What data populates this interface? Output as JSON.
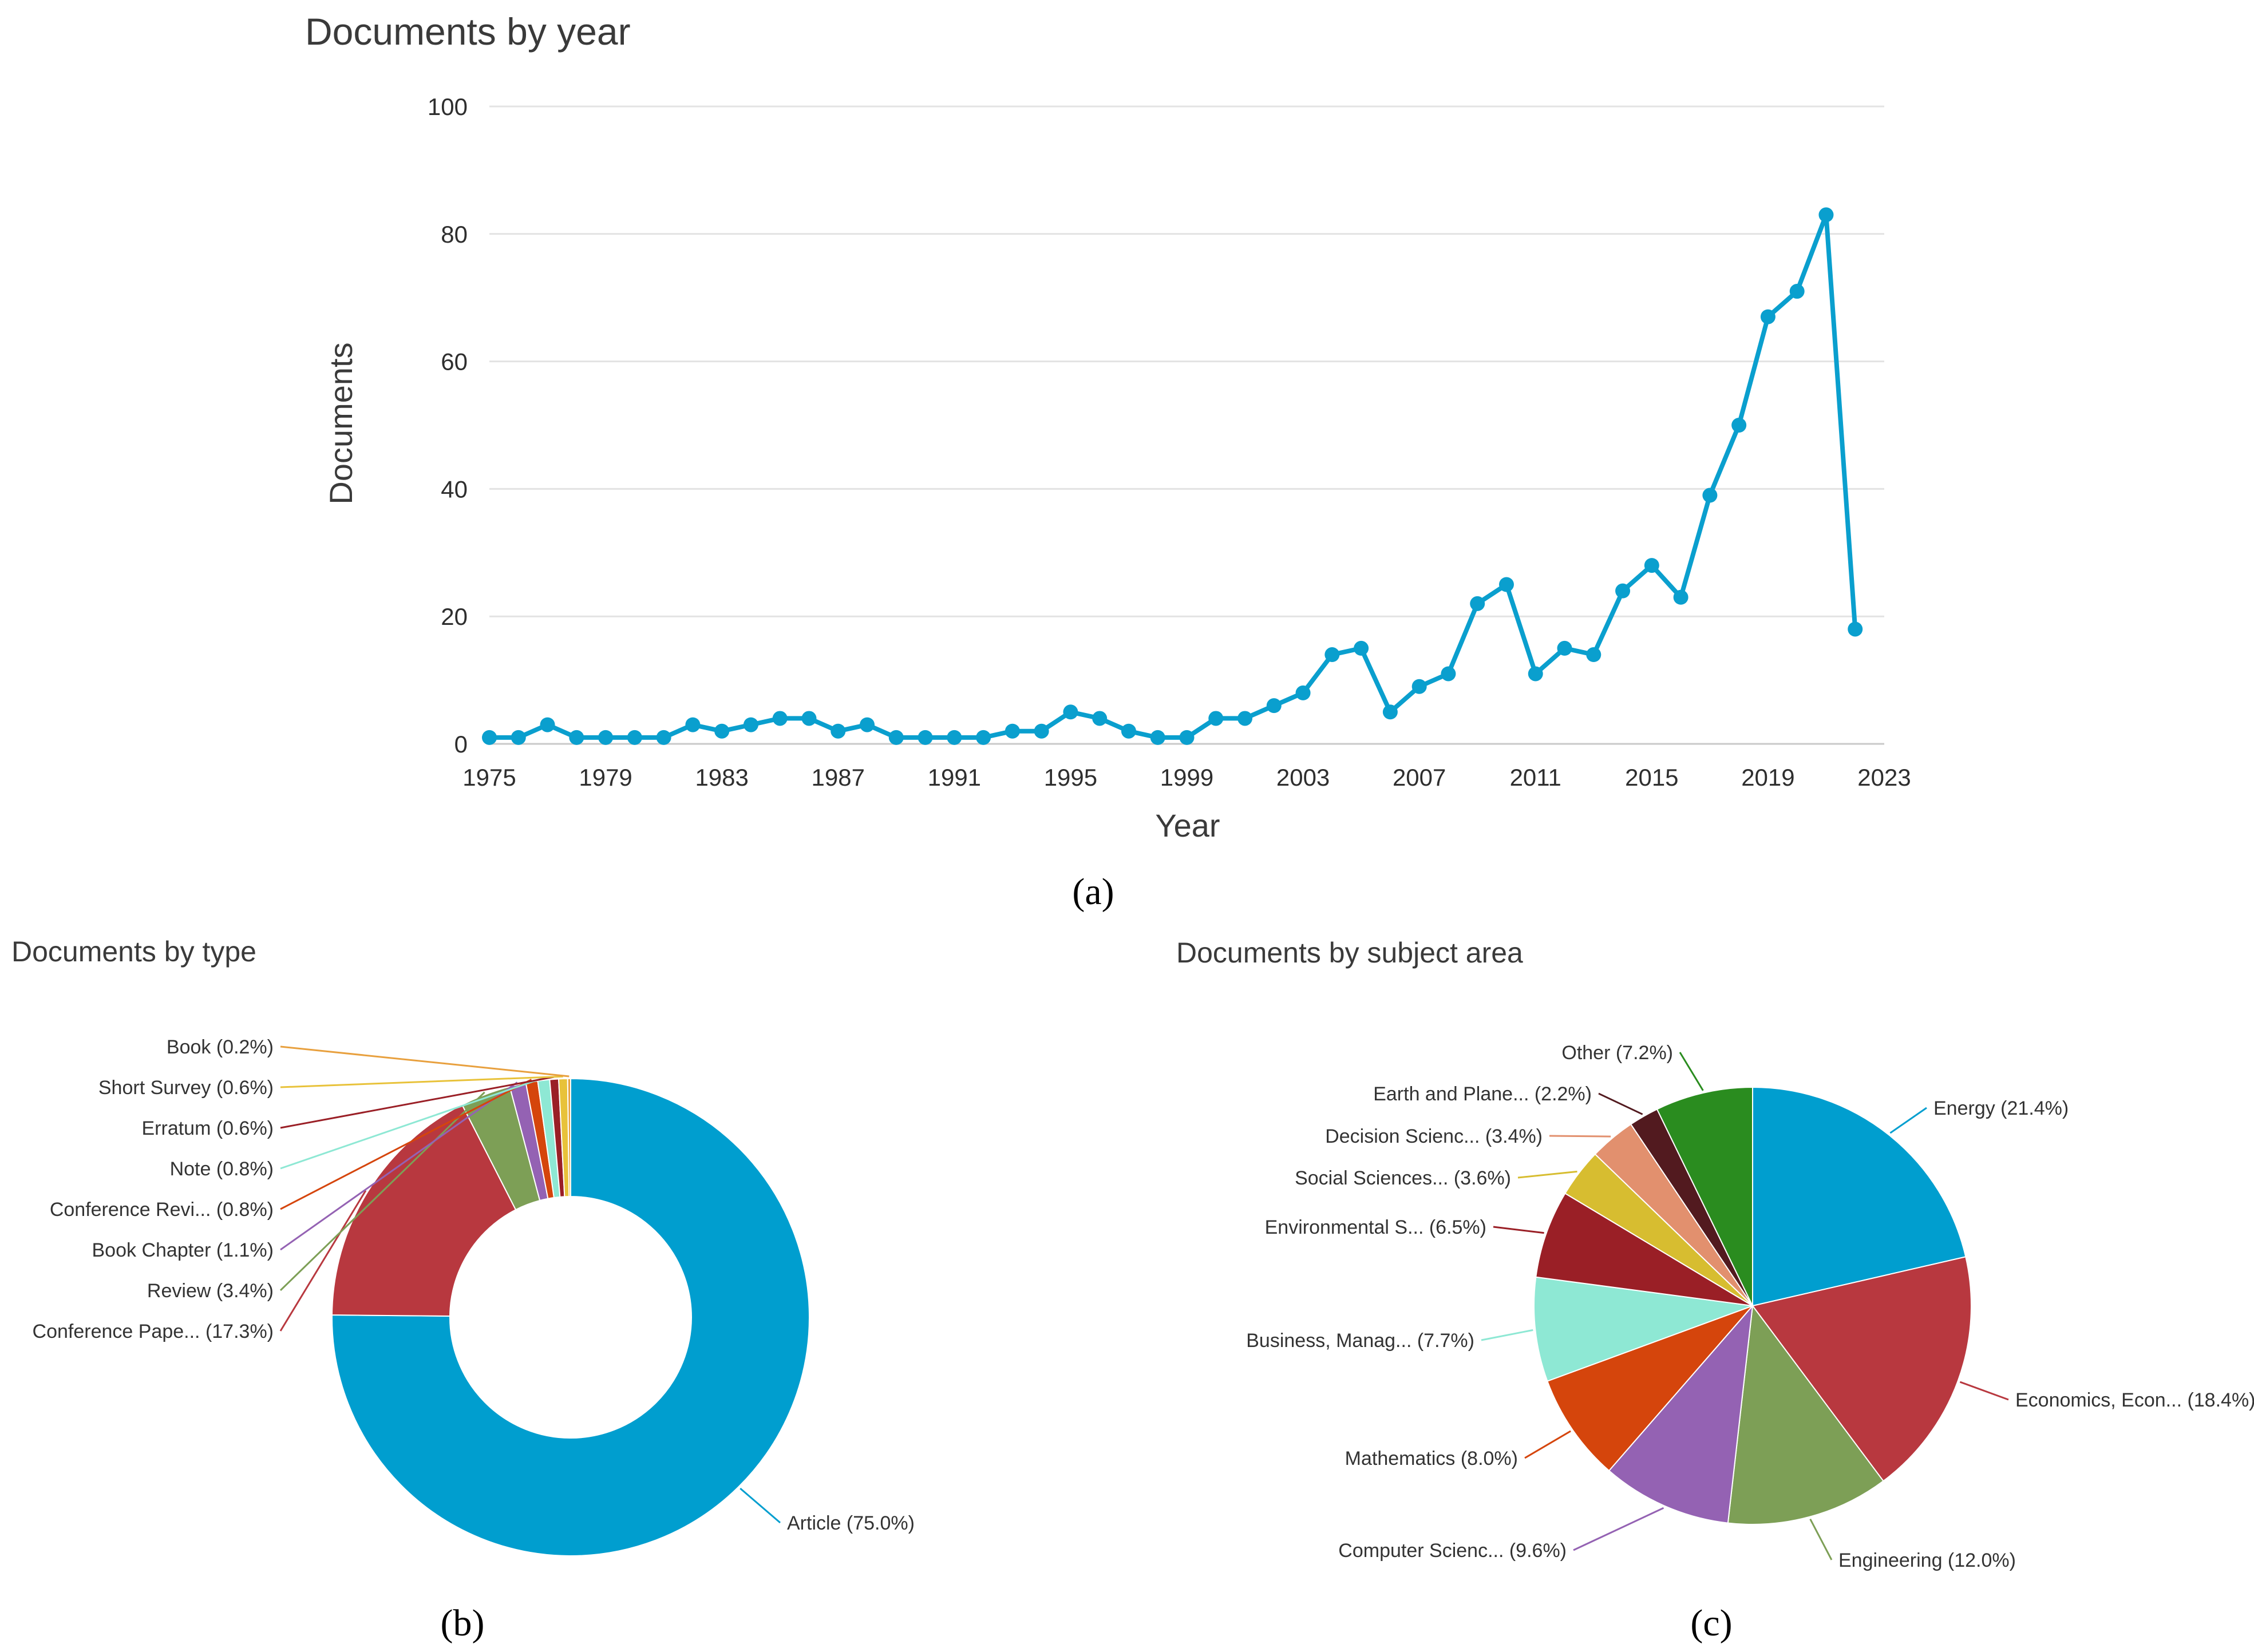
{
  "colors": {
    "line": "#0a9fce",
    "palette": [
      "#009ecf",
      "#b8383f",
      "#7d9f56",
      "#9462b3",
      "#d5450c",
      "#8ee8d4",
      "#9a1f26",
      "#d7bd30",
      "#e2906e",
      "#521a1f",
      "#2a8c1f",
      "#e8a03e"
    ]
  },
  "chart_data": [
    {
      "type": "line",
      "title": "Documents by year",
      "xlabel": "Year",
      "ylabel": "Documents",
      "ylim": [
        0,
        100
      ],
      "yticks": [
        "0",
        "20",
        "40",
        "60",
        "80",
        "100"
      ],
      "xlim": [
        1975,
        2023
      ],
      "xticks": [
        "1975",
        "1979",
        "1983",
        "1987",
        "1991",
        "1995",
        "1999",
        "2003",
        "2007",
        "2011",
        "2015",
        "2019",
        "2023"
      ],
      "x": [
        1975,
        1976,
        1977,
        1978,
        1979,
        1980,
        1981,
        1982,
        1983,
        1984,
        1985,
        1986,
        1987,
        1988,
        1989,
        1990,
        1991,
        1992,
        1993,
        1994,
        1995,
        1996,
        1997,
        1998,
        1999,
        2000,
        2001,
        2002,
        2003,
        2004,
        2005,
        2006,
        2007,
        2008,
        2009,
        2010,
        2011,
        2012,
        2013,
        2014,
        2015,
        2016,
        2017,
        2018,
        2019,
        2020,
        2021,
        2022
      ],
      "values": [
        1,
        1,
        3,
        1,
        1,
        1,
        1,
        3,
        2,
        3,
        4,
        4,
        2,
        3,
        1,
        1,
        1,
        1,
        2,
        2,
        5,
        4,
        2,
        1,
        1,
        4,
        4,
        6,
        8,
        14,
        15,
        5,
        9,
        11,
        22,
        25,
        11,
        15,
        14,
        24,
        28,
        23,
        39,
        50,
        67,
        71,
        83,
        18
      ],
      "panel_label": "(a)"
    },
    {
      "type": "pie",
      "donut": true,
      "title": "Documents by type",
      "slices": [
        {
          "label": "Article (75.0%)",
          "value": 75.0
        },
        {
          "label": "Conference Pape... (17.3%)",
          "value": 17.3
        },
        {
          "label": "Review (3.4%)",
          "value": 3.4
        },
        {
          "label": "Book Chapter (1.1%)",
          "value": 1.1
        },
        {
          "label": "Conference Revi... (0.8%)",
          "value": 0.8
        },
        {
          "label": "Note (0.8%)",
          "value": 0.8
        },
        {
          "label": "Erratum (0.6%)",
          "value": 0.6
        },
        {
          "label": "Short Survey (0.6%)",
          "value": 0.6
        },
        {
          "label": "Book (0.2%)",
          "value": 0.2
        }
      ],
      "panel_label": "(b)"
    },
    {
      "type": "pie",
      "donut": false,
      "title": "Documents by subject area",
      "slices": [
        {
          "label": "Energy (21.4%)",
          "value": 21.4
        },
        {
          "label": "Economics, Econ... (18.4%)",
          "value": 18.4
        },
        {
          "label": "Engineering (12.0%)",
          "value": 12.0
        },
        {
          "label": "Computer Scienc... (9.6%)",
          "value": 9.6
        },
        {
          "label": "Mathematics (8.0%)",
          "value": 8.0
        },
        {
          "label": "Business, Manag... (7.7%)",
          "value": 7.7
        },
        {
          "label": "Environmental S... (6.5%)",
          "value": 6.5
        },
        {
          "label": "Social Sciences... (3.6%)",
          "value": 3.6
        },
        {
          "label": "Decision Scienc... (3.4%)",
          "value": 3.4
        },
        {
          "label": "Earth and Plane... (2.2%)",
          "value": 2.2
        },
        {
          "label": "Other (7.2%)",
          "value": 7.2
        }
      ],
      "panel_label": "(c)"
    }
  ]
}
